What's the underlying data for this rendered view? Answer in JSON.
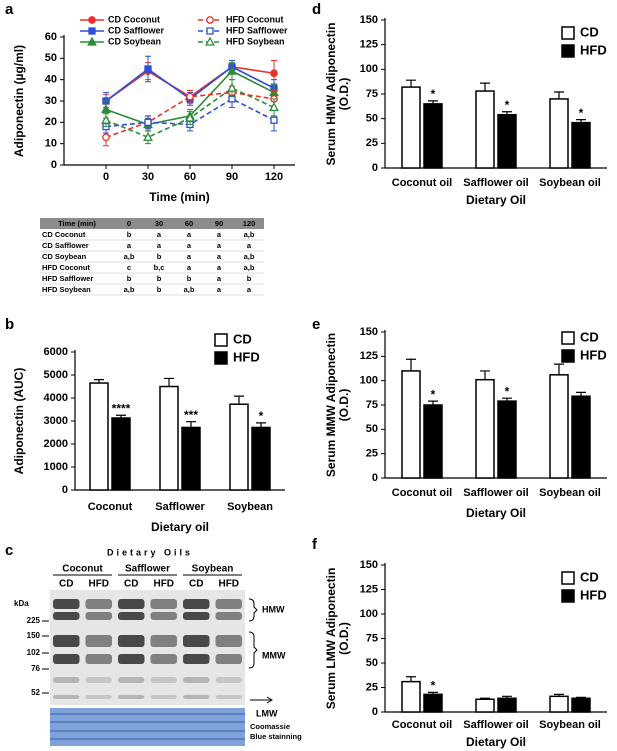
{
  "chart_data": [
    {
      "type": "line",
      "panel_label": "a",
      "x_label": "Time (min)",
      "y_label": "Adiponectin (µg/ml)",
      "x": [
        0,
        30,
        60,
        90,
        120
      ],
      "xlim": [
        -30,
        135
      ],
      "xticks": [
        0,
        30,
        60,
        90,
        120
      ],
      "ylim": [
        0,
        60
      ],
      "yticks": [
        0,
        10,
        20,
        30,
        40,
        50,
        60
      ],
      "series": [
        {
          "name": "CD Coconut",
          "color": "#e8332a",
          "marker": "circle",
          "filled": true,
          "dashed": false,
          "values": [
            30,
            44,
            32,
            46,
            43
          ],
          "errors": [
            3,
            4,
            3,
            3,
            6
          ]
        },
        {
          "name": "CD Safflower",
          "color": "#2e4fd6",
          "marker": "square",
          "filled": true,
          "dashed": false,
          "values": [
            30,
            45,
            31,
            46,
            36
          ],
          "errors": [
            4,
            6,
            3,
            3,
            4
          ]
        },
        {
          "name": "CD Soybean",
          "color": "#2e8b3a",
          "marker": "triangle",
          "filled": true,
          "dashed": false,
          "values": [
            26,
            19,
            23,
            44,
            34
          ],
          "errors": [
            4,
            3,
            3,
            4,
            4
          ]
        },
        {
          "name": "HFD Coconut",
          "color": "#e8332a",
          "marker": "circle",
          "filled": false,
          "dashed": true,
          "values": [
            13,
            20,
            32,
            34,
            31
          ],
          "errors": [
            4,
            3,
            3,
            3,
            4
          ]
        },
        {
          "name": "HFD Safflower",
          "color": "#2e4fd6",
          "marker": "square",
          "filled": false,
          "dashed": true,
          "values": [
            18,
            20,
            19,
            31,
            21
          ],
          "errors": [
            3,
            3,
            3,
            4,
            5
          ]
        },
        {
          "name": "HFD Soybean",
          "color": "#2e8b3a",
          "marker": "triangle",
          "filled": false,
          "dashed": true,
          "values": [
            21,
            13,
            22,
            36,
            27
          ],
          "errors": [
            3,
            3,
            3,
            4,
            4
          ]
        }
      ]
    },
    {
      "type": "bar",
      "panel_label": "b",
      "x_label": "Dietary oil",
      "y_label": [
        "Adiponectin (AUC)"
      ],
      "categories": [
        "Coconut",
        "Safflower",
        "Soybean"
      ],
      "ylim": [
        0,
        6000
      ],
      "yticks": [
        0,
        1000,
        2000,
        3000,
        4000,
        5000,
        6000
      ],
      "series": [
        {
          "name": "CD",
          "color": "#ffffff",
          "values": [
            4650,
            4500,
            3730
          ],
          "errors": [
            150,
            350,
            350
          ]
        },
        {
          "name": "HFD",
          "color": "#000000",
          "values": [
            3130,
            2720,
            2720
          ],
          "errors": [
            120,
            250,
            200
          ],
          "annotations": [
            "****",
            "***",
            "*"
          ]
        }
      ]
    },
    {
      "type": "bar",
      "panel_label": "d",
      "x_label": "Dietary Oil",
      "y_label": [
        "Serum HMW Adiponectin",
        "(O.D.)"
      ],
      "categories": [
        "Coconut oil",
        "Safflower oil",
        "Soybean oil"
      ],
      "ylim": [
        0,
        150
      ],
      "yticks": [
        0,
        25,
        50,
        75,
        100,
        125,
        150
      ],
      "series": [
        {
          "name": "CD",
          "color": "#ffffff",
          "values": [
            82,
            78,
            70
          ],
          "errors": [
            7,
            8,
            7
          ]
        },
        {
          "name": "HFD",
          "color": "#000000",
          "values": [
            65,
            54,
            46
          ],
          "errors": [
            3,
            3,
            3
          ],
          "annotations": [
            "*",
            "*",
            "*"
          ]
        }
      ]
    },
    {
      "type": "bar",
      "panel_label": "e",
      "x_label": "Dietary Oil",
      "y_label": [
        "Serum MMW Adiponectin",
        "(O.D.)"
      ],
      "categories": [
        "Coconut oil",
        "Safflower oil",
        "Soybean oil"
      ],
      "ylim": [
        0,
        150
      ],
      "yticks": [
        0,
        25,
        50,
        75,
        100,
        125,
        150
      ],
      "series": [
        {
          "name": "CD",
          "color": "#ffffff",
          "values": [
            110,
            101,
            106
          ],
          "errors": [
            12,
            9,
            11
          ]
        },
        {
          "name": "HFD",
          "color": "#000000",
          "values": [
            75,
            79,
            84
          ],
          "errors": [
            4,
            3,
            4
          ],
          "annotations": [
            "*",
            "*",
            null
          ]
        }
      ]
    },
    {
      "type": "bar",
      "panel_label": "f",
      "x_label": "Dietary Oil",
      "y_label": [
        "Serum LMW Adiponectin",
        "(O.D.)"
      ],
      "categories": [
        "Coconut oil",
        "Safflower oil",
        "Soybean oil"
      ],
      "ylim": [
        0,
        150
      ],
      "yticks": [
        0,
        25,
        50,
        75,
        100,
        125,
        150
      ],
      "series": [
        {
          "name": "CD",
          "color": "#ffffff",
          "values": [
            31,
            13,
            16
          ],
          "errors": [
            5,
            1,
            2
          ]
        },
        {
          "name": "HFD",
          "color": "#000000",
          "values": [
            18,
            14,
            14
          ],
          "errors": [
            2,
            2,
            1
          ],
          "annotations": [
            "*",
            null,
            null
          ]
        }
      ]
    }
  ],
  "table": {
    "header": [
      "Time (min)",
      "0",
      "30",
      "60",
      "90",
      "120"
    ],
    "rows": [
      [
        "CD Coconut",
        "b",
        "a",
        "a",
        "a",
        "a,b"
      ],
      [
        "CD Safflower",
        "a",
        "a",
        "a",
        "a",
        "a"
      ],
      [
        "CD Soybean",
        "a,b",
        "b",
        "a",
        "a",
        "a,b"
      ],
      [
        "HFD Coconut",
        "c",
        "b,c",
        "a",
        "a",
        "a,b"
      ],
      [
        "HFD Safflower",
        "b",
        "b",
        "b",
        "a",
        "b"
      ],
      [
        "HFD Soybean",
        "a,b",
        "b",
        "a,b",
        "a",
        "a"
      ]
    ]
  },
  "blot": {
    "panel_label": "c",
    "title": "Dietary Oils",
    "groups": [
      {
        "name": "Coconut",
        "lanes": [
          "CD",
          "HFD"
        ]
      },
      {
        "name": "Safflower",
        "lanes": [
          "CD",
          "HFD"
        ]
      },
      {
        "name": "Soybean",
        "lanes": [
          "CD",
          "HFD"
        ]
      }
    ],
    "kda_label": "kDa",
    "markers": [
      225,
      150,
      102,
      76,
      52
    ],
    "bands": [
      "HMW",
      "MMW",
      "LMW"
    ],
    "stain": [
      "Coomassie",
      "Blue stainning"
    ]
  }
}
